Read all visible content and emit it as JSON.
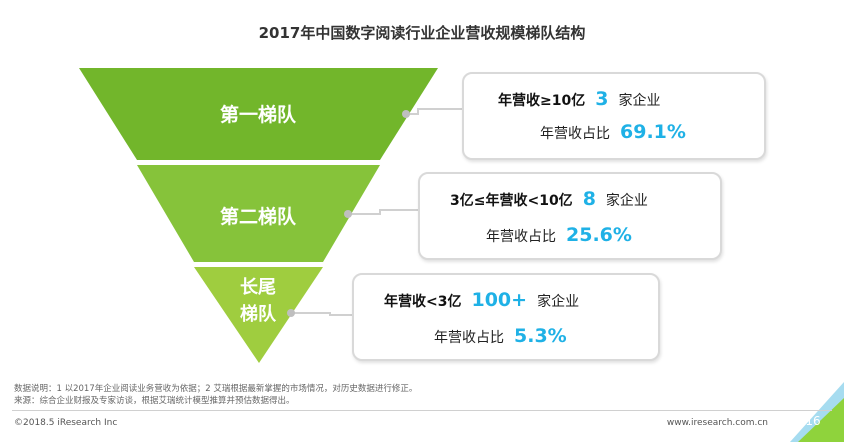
{
  "title": "2017年中国数字阅读行业企业营收规模梯队结构",
  "tiers": [
    {
      "label": "第一梯队",
      "condition": "年营收≥10亿",
      "count": "3",
      "unit": "家企业",
      "share_label": "年营收占比",
      "share": "69.1%"
    },
    {
      "label": "第二梯队",
      "condition": "3亿≤年营收<10亿",
      "count": "8",
      "unit": "家企业",
      "share_label": "年营收占比",
      "share": "25.6%"
    },
    {
      "label_line1": "长尾",
      "label_line2": "梯队",
      "condition": "年营收<3亿",
      "count": "100+",
      "unit": "家企业",
      "share_label": "年营收占比",
      "share": "5.3%"
    }
  ],
  "footer": {
    "note1": "数据说明：1 以2017年企业阅读业务营收为依据；2 艾瑞根据最新掌握的市场情况，对历史数据进行修正。",
    "note2": "来源：综合企业财报及专家访谈，根据艾瑞统计模型推算并预估数据得出。",
    "copyright": "©2018.5 iResearch Inc",
    "website": "www.iresearch.com.cn",
    "page": "16"
  },
  "colors": {
    "tier1": "#72b62b",
    "tier2": "#86c33a",
    "tier3": "#9fcd3f",
    "accent": "#1fb1e6"
  }
}
